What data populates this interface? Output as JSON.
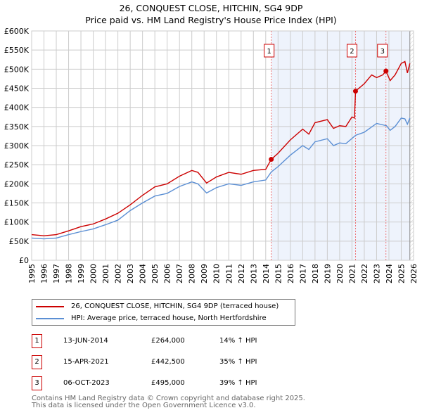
{
  "title": "26, CONQUEST CLOSE, HITCHIN, SG4 9DP",
  "subtitle": "Price paid vs. HM Land Registry's House Price Index (HPI)",
  "chart_data": {
    "type": "line",
    "title": "26, CONQUEST CLOSE, HITCHIN, SG4 9DP",
    "subtitle": "Price paid vs. HM Land Registry's House Price Index (HPI)",
    "xlim": [
      1995,
      2026
    ],
    "ylim": [
      0,
      600000
    ],
    "yticks": [
      0,
      50000,
      100000,
      150000,
      200000,
      250000,
      300000,
      350000,
      400000,
      450000,
      500000,
      550000,
      600000
    ],
    "ytick_labels": [
      "£0",
      "£50K",
      "£100K",
      "£150K",
      "£200K",
      "£250K",
      "£300K",
      "£350K",
      "£400K",
      "£450K",
      "£500K",
      "£550K",
      "£600K"
    ],
    "xticks": [
      1995,
      1996,
      1997,
      1998,
      1999,
      2000,
      2001,
      2002,
      2003,
      2004,
      2005,
      2006,
      2007,
      2008,
      2009,
      2010,
      2011,
      2012,
      2013,
      2014,
      2015,
      2016,
      2017,
      2018,
      2019,
      2020,
      2021,
      2022,
      2023,
      2024,
      2025,
      2026
    ],
    "grid": true,
    "shaded_from": 2014.45,
    "data_end": 2025.7,
    "series": [
      {
        "name": "26, CONQUEST CLOSE, HITCHIN, SG4 9DP (terraced house)",
        "color": "#cc0000",
        "x": [
          1995,
          1996,
          1997,
          1998,
          1999,
          2000,
          2001,
          2002,
          2003,
          2004,
          2005,
          2006,
          2007,
          2008,
          2008.5,
          2009.2,
          2010,
          2011,
          2012,
          2013,
          2014,
          2014.45,
          2015,
          2016,
          2017,
          2017.5,
          2018,
          2019,
          2019.5,
          2020,
          2020.5,
          2021.0,
          2021.2,
          2021.29,
          2022,
          2022.6,
          2023,
          2023.5,
          2023.76,
          2024.1,
          2024.5,
          2025,
          2025.3,
          2025.5,
          2025.7
        ],
        "y": [
          67000,
          64000,
          67000,
          77000,
          88000,
          95000,
          108000,
          123000,
          145000,
          170000,
          192000,
          200000,
          220000,
          235000,
          230000,
          202000,
          218000,
          230000,
          225000,
          235000,
          238000,
          264000,
          280000,
          315000,
          343000,
          330000,
          360000,
          368000,
          345000,
          352000,
          350000,
          375000,
          372000,
          442500,
          462000,
          485000,
          478000,
          485000,
          495000,
          470000,
          485000,
          515000,
          520000,
          490000,
          515000
        ]
      },
      {
        "name": "HPI: Average price, terraced house, North Hertfordshire",
        "color": "#5b8fd4",
        "x": [
          1995,
          1996,
          1997,
          1998,
          1999,
          2000,
          2001,
          2002,
          2003,
          2004,
          2005,
          2006,
          2007,
          2008,
          2008.5,
          2009.2,
          2010,
          2011,
          2012,
          2013,
          2014,
          2014.45,
          2015,
          2016,
          2017,
          2017.5,
          2018,
          2019,
          2019.5,
          2020,
          2020.5,
          2021.3,
          2022,
          2023,
          2023.8,
          2024.1,
          2024.5,
          2025,
          2025.3,
          2025.5,
          2025.7
        ],
        "y": [
          58000,
          56000,
          58000,
          67000,
          75000,
          82000,
          93000,
          105000,
          130000,
          150000,
          168000,
          175000,
          193000,
          205000,
          200000,
          176000,
          190000,
          200000,
          196000,
          205000,
          210000,
          231000,
          245000,
          275000,
          300000,
          290000,
          310000,
          318000,
          300000,
          307000,
          305000,
          327000,
          335000,
          358000,
          352000,
          340000,
          350000,
          372000,
          370000,
          356000,
          372000
        ]
      }
    ],
    "sales": [
      {
        "label": "1",
        "x": 2014.45,
        "price": 264000,
        "date": "13-JUN-2014",
        "price_text": "£264,000",
        "hpi_text": "14% ↑ HPI"
      },
      {
        "label": "2",
        "x": 2021.29,
        "price": 442500,
        "date": "15-APR-2021",
        "price_text": "£442,500",
        "hpi_text": "35% ↑ HPI"
      },
      {
        "label": "3",
        "x": 2023.76,
        "price": 495000,
        "date": "06-OCT-2023",
        "price_text": "£495,000",
        "hpi_text": "39% ↑ HPI"
      }
    ]
  },
  "legend": {
    "red": "26, CONQUEST CLOSE, HITCHIN, SG4 9DP (terraced house)",
    "blue": "HPI: Average price, terraced house, North Hertfordshire"
  },
  "footer": [
    "Contains HM Land Registry data © Crown copyright and database right 2025.",
    "This data is licensed under the Open Government Licence v3.0."
  ],
  "colors": {
    "red": "#cc0000",
    "blue": "#5b8fd4",
    "shade": "#eef3fc"
  }
}
